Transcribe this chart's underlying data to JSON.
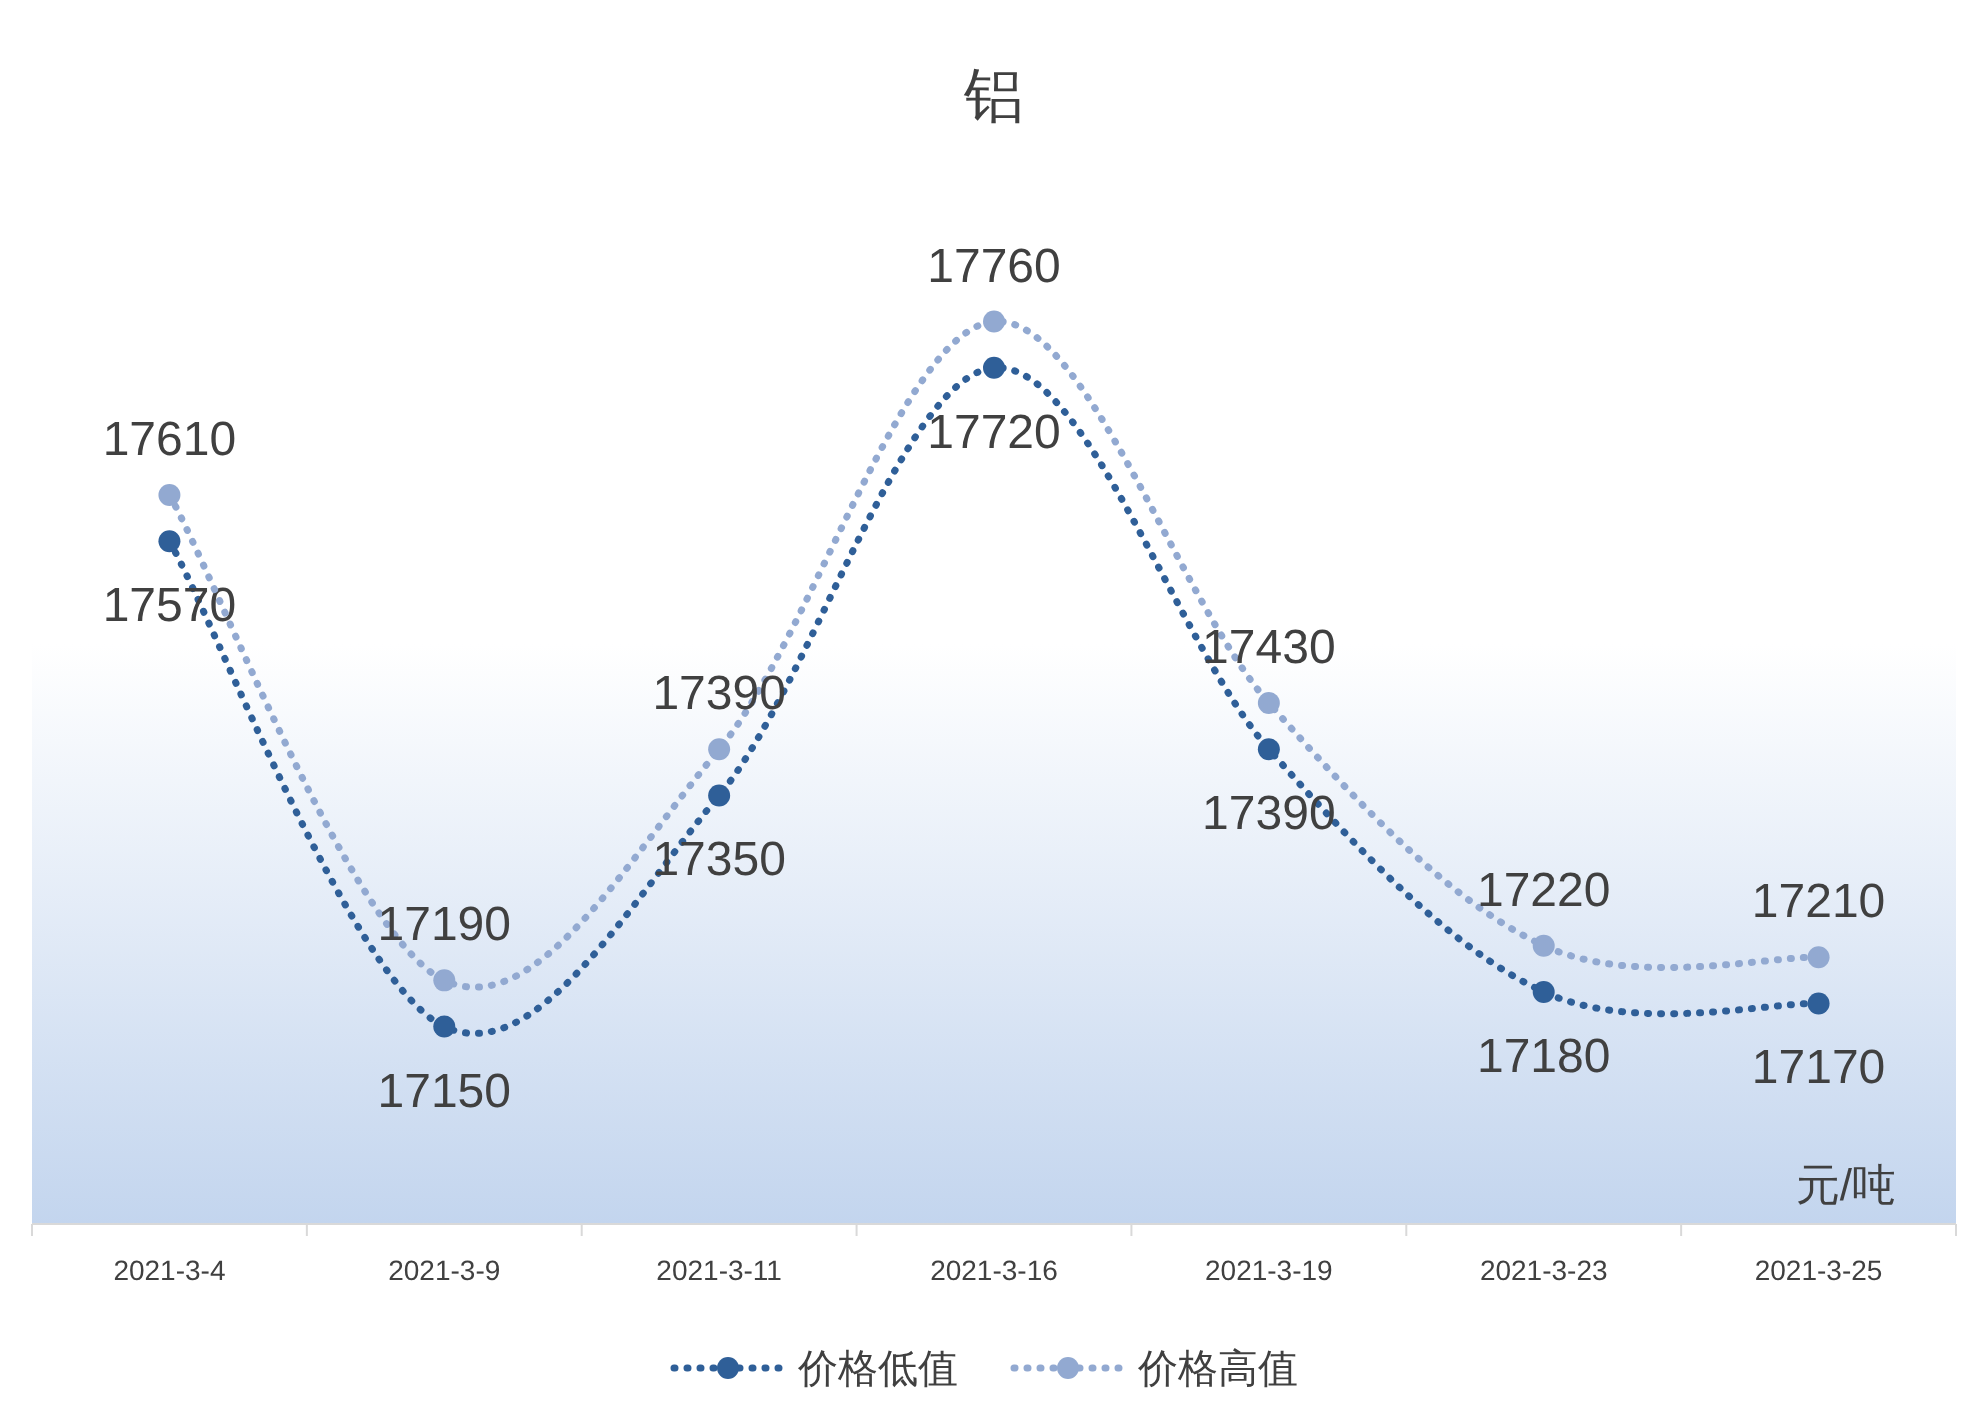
{
  "chart_data": {
    "type": "line",
    "title": "铝",
    "categories": [
      "2021-3-4",
      "2021-3-9",
      "2021-3-11",
      "2021-3-16",
      "2021-3-19",
      "2021-3-23",
      "2021-3-25"
    ],
    "series": [
      {
        "name": "价格低值",
        "color": "#2f5f98",
        "values": [
          17570,
          17150,
          17350,
          17720,
          17390,
          17180,
          17170
        ]
      },
      {
        "name": "价格高值",
        "color": "#92a9d1",
        "values": [
          17610,
          17190,
          17390,
          17760,
          17430,
          17220,
          17210
        ]
      }
    ],
    "data_labels": true,
    "marker": "circle",
    "line_style": "dotted",
    "legend": "bottom",
    "annotations": [
      "元/吨"
    ]
  }
}
